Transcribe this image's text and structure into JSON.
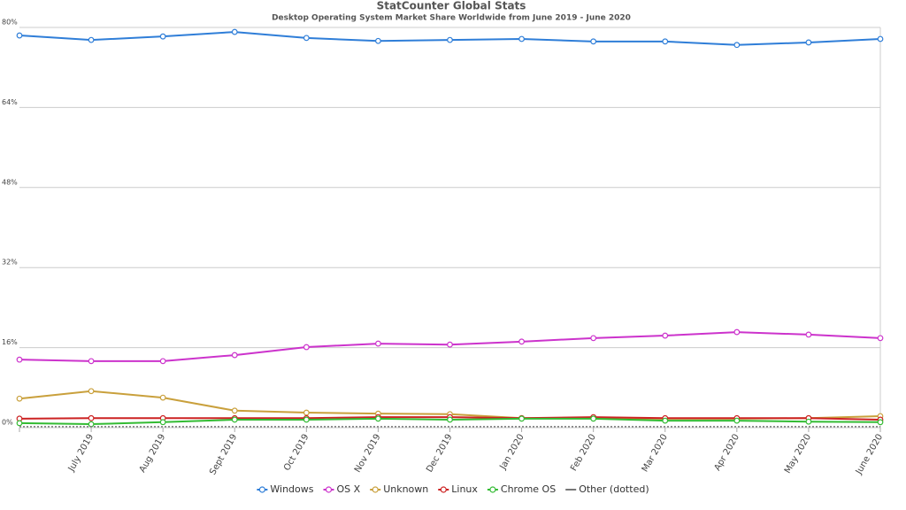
{
  "chart_data": {
    "type": "line",
    "title": "StatCounter Global Stats",
    "subtitle": "Desktop Operating System Market Share Worldwide from June 2019 - June 2020",
    "categories": [
      null,
      "July 2019",
      "Aug 2019",
      "Sept 2019",
      "Oct 2019",
      "Nov 2019",
      "Dec 2019",
      "Jan 2020",
      "Feb 2020",
      "Mar 2020",
      "Apr 2020",
      "May 2020",
      "June 2020"
    ],
    "ylim": [
      0,
      80
    ],
    "yticks": [
      {
        "value": 0,
        "label": "0%"
      },
      {
        "value": 16,
        "label": "16%"
      },
      {
        "value": 32,
        "label": "32%"
      },
      {
        "value": 48,
        "label": "48%"
      },
      {
        "value": 64,
        "label": "64%"
      },
      {
        "value": 80,
        "label": "80%"
      }
    ],
    "grid": true,
    "legend": "bottom",
    "series": [
      {
        "name": "Windows",
        "color": "#2f7ed8",
        "values": [
          78.4,
          77.5,
          78.2,
          79.1,
          77.9,
          77.3,
          77.5,
          77.7,
          77.2,
          77.2,
          76.5,
          77.0,
          77.7
        ]
      },
      {
        "name": "OS X",
        "color": "#cc33cc",
        "values": [
          13.6,
          13.3,
          13.3,
          14.5,
          16.1,
          16.8,
          16.6,
          17.2,
          17.9,
          18.4,
          19.1,
          18.6,
          17.9
        ]
      },
      {
        "name": "Unknown",
        "color": "#c9a03c",
        "values": [
          5.8,
          7.3,
          6.0,
          3.4,
          3.0,
          2.8,
          2.7,
          1.9,
          1.9,
          1.8,
          1.8,
          1.9,
          2.3
        ]
      },
      {
        "name": "Linux",
        "color": "#cc2222",
        "values": [
          1.8,
          1.9,
          1.9,
          1.9,
          1.9,
          2.1,
          2.1,
          1.9,
          2.1,
          1.9,
          1.9,
          1.9,
          1.6
        ]
      },
      {
        "name": "Chrome OS",
        "color": "#33bb33",
        "values": [
          0.9,
          0.7,
          1.1,
          1.6,
          1.6,
          1.8,
          1.6,
          1.8,
          1.8,
          1.4,
          1.4,
          1.2,
          1.1
        ]
      },
      {
        "name": "Other (dotted)",
        "color": "#777777",
        "style": "dotted",
        "values": [
          0.2,
          0.2,
          0.2,
          0.2,
          0.2,
          0.2,
          0.2,
          0.2,
          0.2,
          0.2,
          0.2,
          0.2,
          0.2
        ]
      }
    ]
  }
}
